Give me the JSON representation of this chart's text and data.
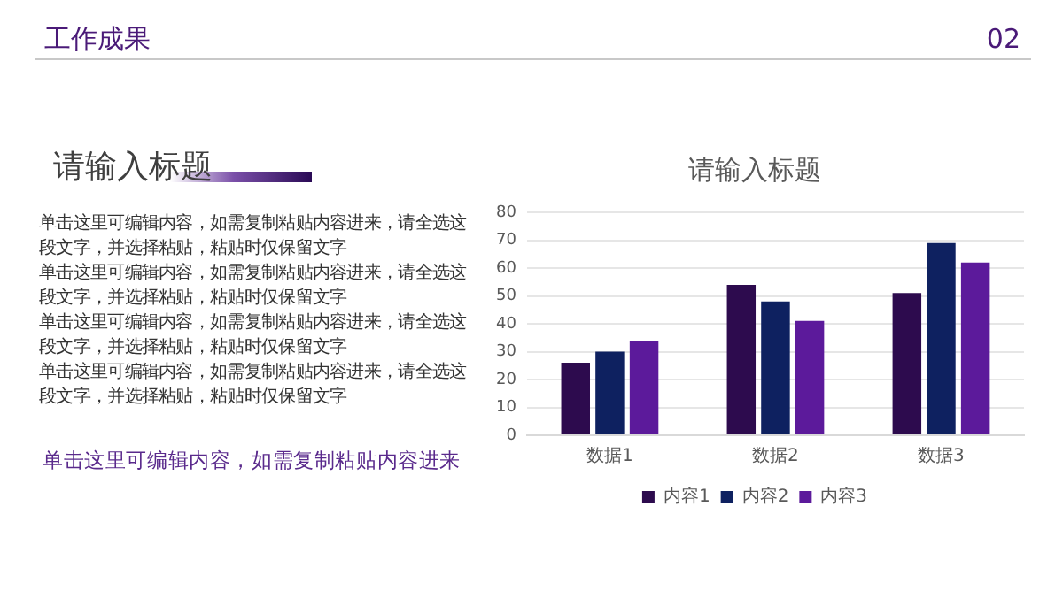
{
  "chart_data": {
    "type": "bar",
    "title": "请输入标题",
    "categories": [
      "数据1",
      "数据2",
      "数据3"
    ],
    "series": [
      {
        "name": "内容1",
        "color": "#2d0b4e",
        "values": [
          26,
          54,
          51
        ]
      },
      {
        "name": "内容2",
        "color": "#0e2160",
        "values": [
          30,
          48,
          69
        ]
      },
      {
        "name": "内容3",
        "color": "#5c1a9b",
        "values": [
          34,
          41,
          62
        ]
      }
    ],
    "ylim": [
      0,
      80
    ],
    "yticks": [
      0,
      10,
      20,
      30,
      40,
      50,
      60,
      70,
      80
    ],
    "grid": "y",
    "legend": "bottom",
    "annotations": [
      "工作成果",
      "02",
      "请输入标题",
      "单击这里可编辑内容，如需复制粘贴内容进来，请全选这段文字，并选择粘贴，粘贴时仅保留文字",
      "单击这里可编辑内容，如需复制粘贴内容进来，请全选这段文字，并选择粘贴，粘贴时仅保留文字",
      "单击这里可编辑内容，如需复制粘贴内容进来，请全选这段文字，并选择粘贴，粘贴时仅保留文字",
      "单击这里可编辑内容，如需复制粘贴内容进来，请全选这段文字，并选择粘贴，粘贴时仅保留文字",
      "单击这里可编辑内容，如需复制粘贴内容进来"
    ]
  }
}
